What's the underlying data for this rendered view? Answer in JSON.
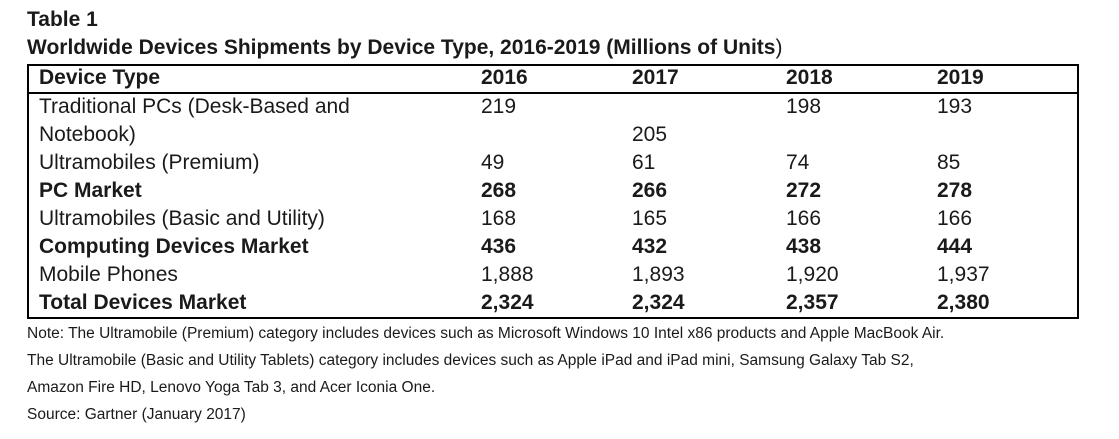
{
  "table_label": "Table 1",
  "table_title_bold": "Worldwide Devices Shipments by Device Type, 2016-2019 (Millions of Units",
  "table_title_tail": ")",
  "columns": [
    "Device Type",
    "2016",
    "2017",
    "2018",
    "2019"
  ],
  "rows": [
    {
      "label": "Traditional PCs (Desk-Based and",
      "values": [
        "219",
        "",
        "198",
        "193"
      ],
      "bold": false
    },
    {
      "label": "Notebook)",
      "values": [
        "",
        "205",
        "",
        ""
      ],
      "bold": false
    },
    {
      "label": "Ultramobiles (Premium)",
      "values": [
        "49",
        "61",
        "74",
        "85"
      ],
      "bold": false
    },
    {
      "label": "PC Market",
      "values": [
        "268",
        "266",
        "272",
        "278"
      ],
      "bold": true
    },
    {
      "label": "Ultramobiles (Basic and Utility)",
      "values": [
        "168",
        "165",
        "166",
        "166"
      ],
      "bold": false
    },
    {
      "label": "Computing Devices Market",
      "values": [
        "436",
        "432",
        "438",
        "444"
      ],
      "bold": true
    },
    {
      "label": "Mobile Phones",
      "values": [
        "1,888",
        "1,893",
        "1,920",
        "1,937"
      ],
      "bold": false
    },
    {
      "label": "Total Devices Market",
      "values": [
        "2,324",
        "2,324",
        "2,357",
        "2,380"
      ],
      "bold": true
    }
  ],
  "notes": [
    "Note: The Ultramobile (Premium) category includes devices such as Microsoft Windows 10 Intel x86 products and Apple MacBook Air.",
    "The Ultramobile (Basic and Utility Tablets) category includes devices such as Apple iPad and iPad mini, Samsung Galaxy Tab S2,",
    "Amazon Fire HD, Lenovo Yoga Tab 3, and Acer Iconia One.",
    "Source: Gartner (January 2017)"
  ]
}
